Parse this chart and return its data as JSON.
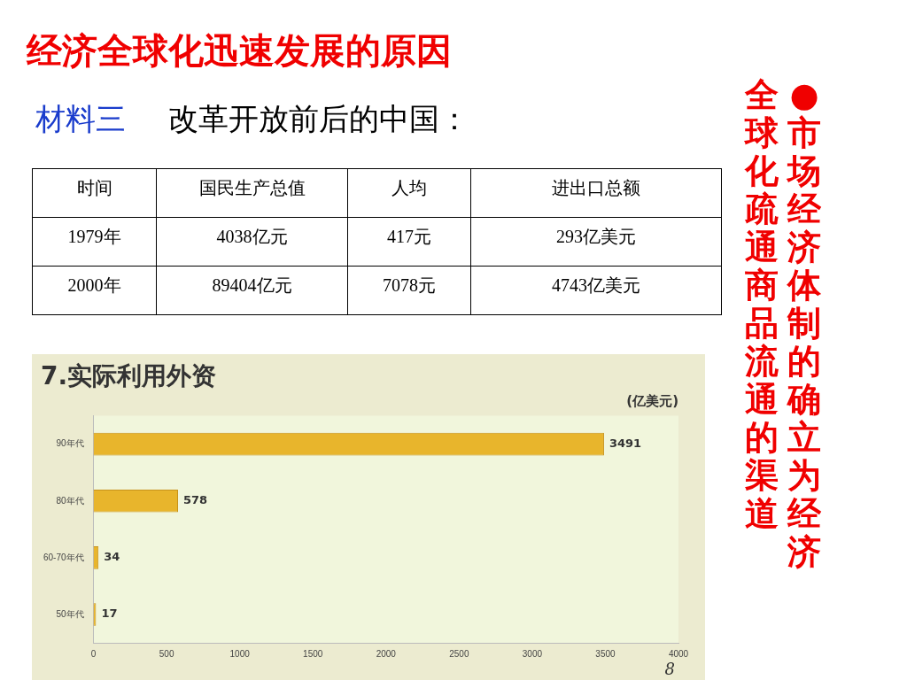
{
  "chart_data": [
    {
      "type": "other",
      "title": "经济全球化迅速发展的原因",
      "subtitle": "材料三",
      "annotations": [
        "改革开放前后的中国：",
        "●市场经济体制的确立为经济",
        "全球化疏通商品流通的渠道"
      ],
      "categories": [
        "时间",
        "国民生产总值",
        "人均",
        "进出口总额"
      ],
      "y_categories": [
        "1979年",
        "2000年"
      ],
      "cell_labels": [
        [
          "4038亿元",
          "417元",
          "293亿美元"
        ],
        [
          "89404亿元",
          "7078元",
          "4743亿美元"
        ]
      ]
    },
    {
      "type": "bar",
      "orientation": "horizontal",
      "title": "7.实际利用外资",
      "annotations": [
        "(亿美元)",
        "8"
      ],
      "categories": [
        "90年代",
        "80年代",
        "60-70年代",
        "50年代"
      ],
      "values": [
        3491,
        578,
        34,
        17
      ],
      "color": "#e8b52c",
      "xlim": [
        0,
        4000
      ],
      "xticks": [
        0,
        500,
        1000,
        1500,
        2000,
        2500,
        3000,
        3500,
        4000
      ],
      "data_labels": true,
      "grid": false,
      "legend": false
    }
  ]
}
